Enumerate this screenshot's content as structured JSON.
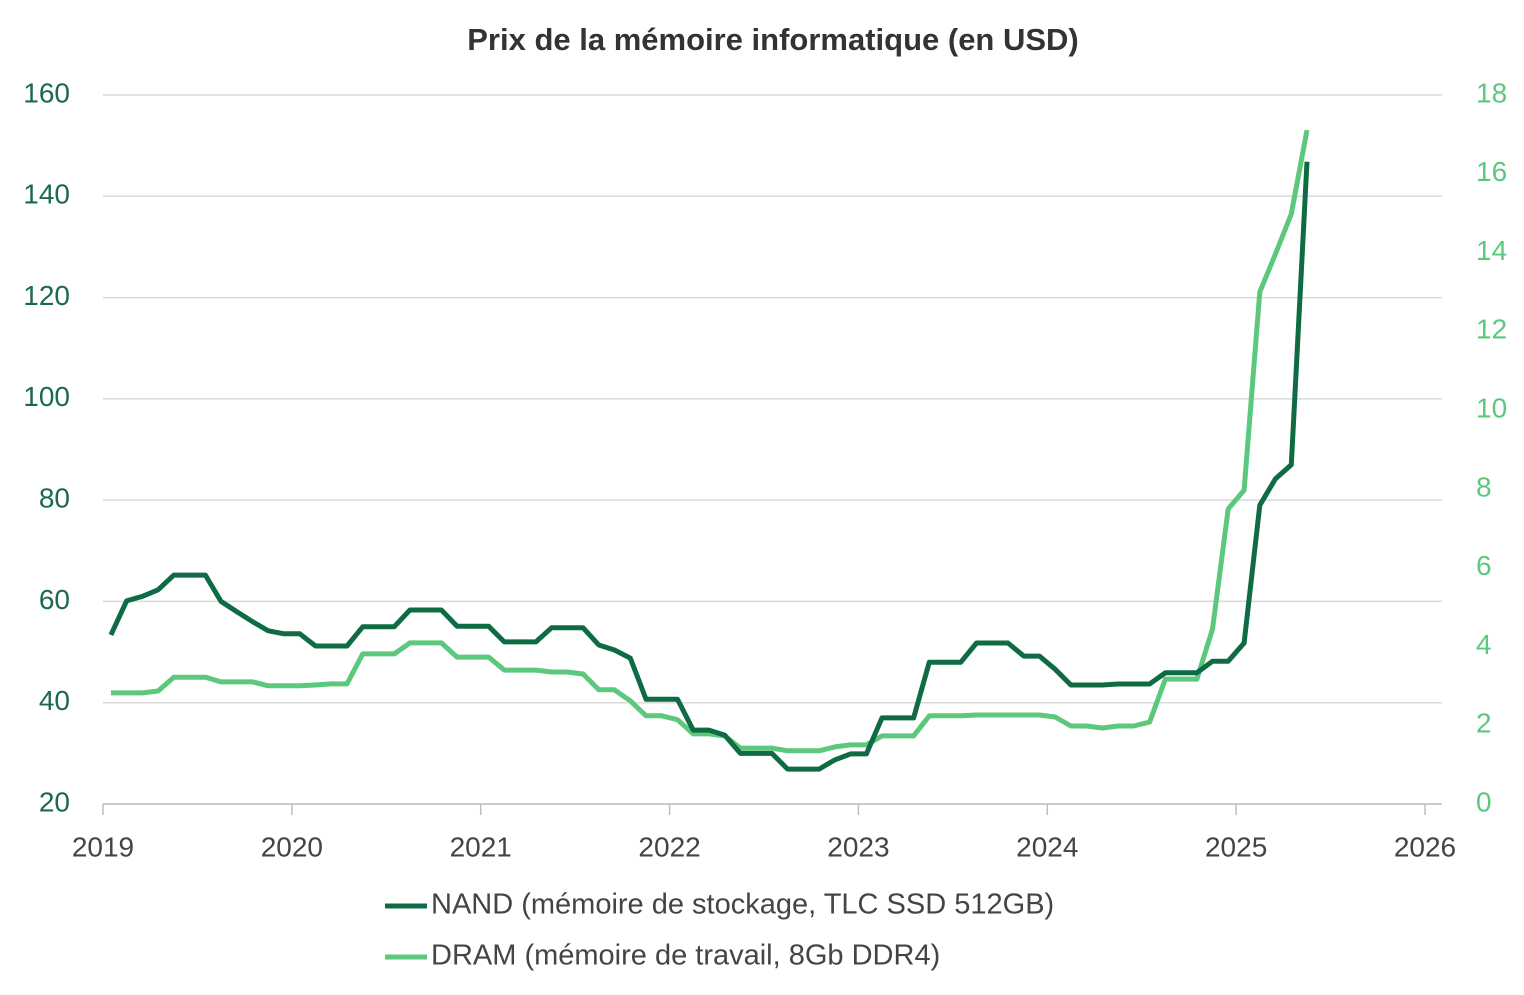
{
  "chart_data": {
    "type": "line",
    "title": "Prix de la mémoire informatique (en USD)",
    "x": [
      2019.042,
      2019.125,
      2019.208,
      2019.292,
      2019.375,
      2019.458,
      2019.542,
      2019.625,
      2019.708,
      2019.792,
      2019.875,
      2019.958,
      2020.042,
      2020.125,
      2020.208,
      2020.292,
      2020.375,
      2020.458,
      2020.542,
      2020.625,
      2020.708,
      2020.792,
      2020.875,
      2020.958,
      2021.042,
      2021.125,
      2021.208,
      2021.292,
      2021.375,
      2021.458,
      2021.542,
      2021.625,
      2021.708,
      2021.792,
      2021.875,
      2021.958,
      2022.042,
      2022.125,
      2022.208,
      2022.292,
      2022.375,
      2022.458,
      2022.542,
      2022.625,
      2022.708,
      2022.792,
      2022.875,
      2022.958,
      2023.042,
      2023.125,
      2023.208,
      2023.292,
      2023.375,
      2023.458,
      2023.542,
      2023.625,
      2023.708,
      2023.792,
      2023.875,
      2023.958,
      2024.042,
      2024.125,
      2024.208,
      2024.292,
      2024.375,
      2024.458,
      2024.542,
      2024.625,
      2024.708,
      2024.792,
      2024.875,
      2024.958,
      2025.042,
      2025.125,
      2025.208,
      2025.292,
      2025.375
    ],
    "series": [
      {
        "name": "NAND (mémoire de stockage, TLC SSD 512GB)",
        "color": "#0e6b43",
        "axis": "y",
        "values": [
          53.4,
          60.1,
          61,
          62.3,
          65.2,
          65.2,
          65.2,
          60,
          58,
          56,
          54.2,
          53.6,
          53.6,
          51.2,
          51.2,
          51.2,
          55,
          55,
          55,
          58.3,
          58.3,
          58.3,
          55.1,
          55.1,
          55.1,
          52,
          52,
          52,
          54.8,
          54.8,
          54.8,
          51.4,
          50.4,
          48.8,
          40.7,
          40.7,
          40.7,
          34.6,
          34.6,
          33.6,
          30,
          30,
          30,
          26.9,
          26.9,
          26.9,
          28.7,
          29.9,
          29.9,
          37,
          37,
          37,
          48,
          48,
          48,
          51.8,
          51.8,
          51.8,
          49.2,
          49.2,
          46.6,
          43.5,
          43.5,
          43.5,
          43.7,
          43.7,
          43.7,
          45.9,
          45.9,
          45.9,
          48.2,
          48.2,
          51.8,
          79,
          84.2,
          87,
          146.8
        ]
      },
      {
        "name": "DRAM (mémoire de travail, 8Gb DDR4)",
        "color": "#5cc87c",
        "axis": "y2",
        "values": [
          2.82,
          2.82,
          2.82,
          2.87,
          3.22,
          3.22,
          3.22,
          3.1,
          3.1,
          3.1,
          3,
          3,
          3,
          3.02,
          3.05,
          3.05,
          3.81,
          3.81,
          3.81,
          4.09,
          4.09,
          4.09,
          3.73,
          3.73,
          3.73,
          3.4,
          3.4,
          3.4,
          3.35,
          3.35,
          3.3,
          2.9,
          2.9,
          2.62,
          2.24,
          2.24,
          2.14,
          1.78,
          1.78,
          1.73,
          1.42,
          1.42,
          1.42,
          1.35,
          1.35,
          1.35,
          1.45,
          1.5,
          1.5,
          1.73,
          1.73,
          1.73,
          2.24,
          2.24,
          2.24,
          2.26,
          2.26,
          2.26,
          2.26,
          2.26,
          2.21,
          1.98,
          1.98,
          1.93,
          1.98,
          1.98,
          2.08,
          3.17,
          3.17,
          3.17,
          4.44,
          7.49,
          7.97,
          13,
          13.96,
          14.98,
          17.11
        ]
      }
    ],
    "xlim": [
      2019,
      2026
    ],
    "xticks": [
      2019,
      2020,
      2021,
      2022,
      2023,
      2024,
      2025,
      2026
    ],
    "ylim": [
      20,
      160
    ],
    "yticks": [
      20,
      40,
      60,
      80,
      100,
      120,
      140,
      160
    ],
    "ytick_color": "#1a6b4e",
    "y2lim": [
      0,
      18
    ],
    "y2ticks": [
      0,
      2,
      4,
      6,
      8,
      10,
      12,
      14,
      16,
      18
    ],
    "y2tick_color": "#5cc87c",
    "grid": true
  }
}
